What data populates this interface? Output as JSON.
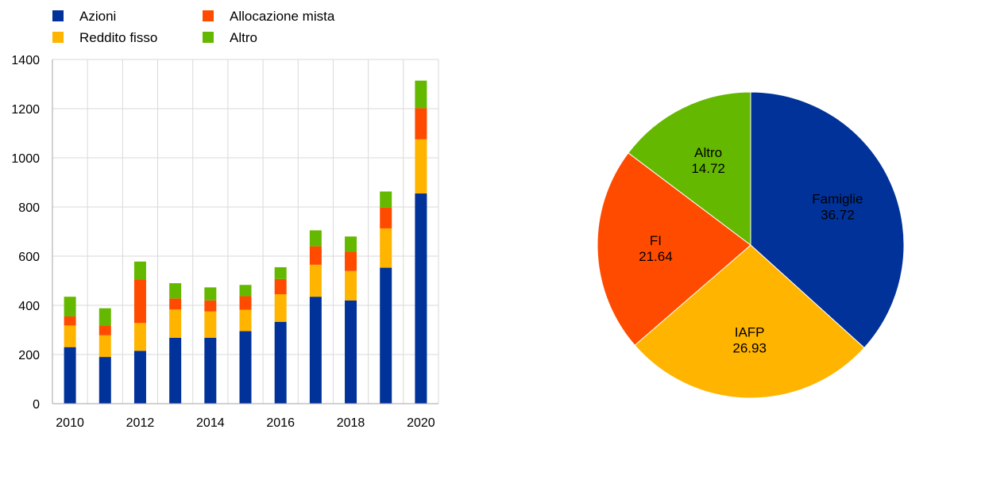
{
  "chart_data": [
    {
      "type": "bar",
      "stacked": true,
      "categories": [
        "2010",
        "2011",
        "2012",
        "2013",
        "2014",
        "2015",
        "2016",
        "2017",
        "2018",
        "2019",
        "2020"
      ],
      "xtick_labels": [
        "2010",
        "",
        "2012",
        "",
        "2014",
        "",
        "2016",
        "",
        "2018",
        "",
        "2020"
      ],
      "series": [
        {
          "name": "Azioni",
          "color": "#003299",
          "values": [
            230,
            190,
            215,
            268,
            268,
            295,
            333,
            435,
            420,
            553,
            855
          ]
        },
        {
          "name": "Reddito fisso",
          "color": "#FFB400",
          "values": [
            88,
            88,
            113,
            115,
            107,
            87,
            112,
            130,
            120,
            160,
            220
          ]
        },
        {
          "name": "Allocazione mista",
          "color": "#FF4B00",
          "values": [
            37,
            40,
            178,
            45,
            45,
            55,
            62,
            75,
            78,
            85,
            127
          ]
        },
        {
          "name": "Altro",
          "color": "#65B800",
          "values": [
            80,
            70,
            72,
            62,
            53,
            46,
            48,
            65,
            62,
            65,
            112
          ]
        }
      ],
      "legend_order": [
        "Azioni",
        "Allocazione mista",
        "Reddito fisso",
        "Altro"
      ],
      "legend_position": "top-left",
      "ylim": [
        0,
        1400
      ],
      "yticks": [
        0,
        200,
        400,
        600,
        800,
        1000,
        1200,
        1400
      ],
      "grid": true,
      "title": "",
      "xlabel": "",
      "ylabel": ""
    },
    {
      "type": "pie",
      "slices": [
        {
          "label": "Famiglie",
          "value": 36.72,
          "value_label": "36.72",
          "color": "#003299"
        },
        {
          "label": "IAFP",
          "value": 26.93,
          "value_label": "26.93",
          "color": "#FFB400"
        },
        {
          "label": "FI",
          "value": 21.64,
          "value_label": "21.64",
          "color": "#FF4B00"
        },
        {
          "label": "Altro",
          "value": 14.72,
          "value_label": "14.72",
          "color": "#65B800"
        }
      ],
      "start": "top",
      "direction": "clockwise",
      "title": ""
    }
  ]
}
